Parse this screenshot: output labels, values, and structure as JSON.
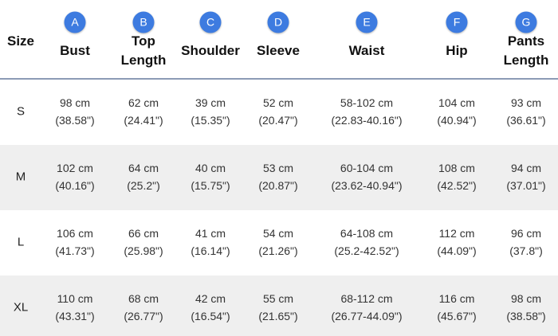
{
  "table": {
    "columns": [
      {
        "label": "Size"
      },
      {
        "badge": "A",
        "label": "Bust"
      },
      {
        "badge": "B",
        "label": "Top Length"
      },
      {
        "badge": "C",
        "label": "Shoulder"
      },
      {
        "badge": "D",
        "label": "Sleeve"
      },
      {
        "badge": "E",
        "label": "Waist"
      },
      {
        "badge": "F",
        "label": "Hip"
      },
      {
        "badge": "G",
        "label": "Pants Length"
      }
    ],
    "rows": [
      {
        "size": "S",
        "cells": [
          [
            "98 cm",
            "(38.58\")"
          ],
          [
            "62 cm",
            "(24.41\")"
          ],
          [
            "39 cm",
            "(15.35\")"
          ],
          [
            "52 cm",
            "(20.47\")"
          ],
          [
            "58-102 cm",
            "(22.83-40.16\")"
          ],
          [
            "104 cm",
            "(40.94\")"
          ],
          [
            "93 cm",
            "(36.61\")"
          ]
        ]
      },
      {
        "size": "M",
        "cells": [
          [
            "102 cm",
            "(40.16\")"
          ],
          [
            "64 cm",
            "(25.2\")"
          ],
          [
            "40 cm",
            "(15.75\")"
          ],
          [
            "53 cm",
            "(20.87\")"
          ],
          [
            "60-104 cm",
            "(23.62-40.94\")"
          ],
          [
            "108 cm",
            "(42.52\")"
          ],
          [
            "94 cm",
            "(37.01\")"
          ]
        ]
      },
      {
        "size": "L",
        "cells": [
          [
            "106 cm",
            "(41.73\")"
          ],
          [
            "66 cm",
            "(25.98\")"
          ],
          [
            "41 cm",
            "(16.14\")"
          ],
          [
            "54 cm",
            "(21.26\")"
          ],
          [
            "64-108 cm",
            "(25.2-42.52\")"
          ],
          [
            "112 cm",
            "(44.09\")"
          ],
          [
            "96 cm",
            "(37.8\")"
          ]
        ]
      },
      {
        "size": "XL",
        "cells": [
          [
            "110 cm",
            "(43.31\")"
          ],
          [
            "68 cm",
            "(26.77\")"
          ],
          [
            "42 cm",
            "(16.54\")"
          ],
          [
            "55 cm",
            "(21.65\")"
          ],
          [
            "68-112 cm",
            "(26.77-44.09\")"
          ],
          [
            "116 cm",
            "(45.67\")"
          ],
          [
            "98 cm",
            "(38.58\")"
          ]
        ]
      }
    ]
  }
}
